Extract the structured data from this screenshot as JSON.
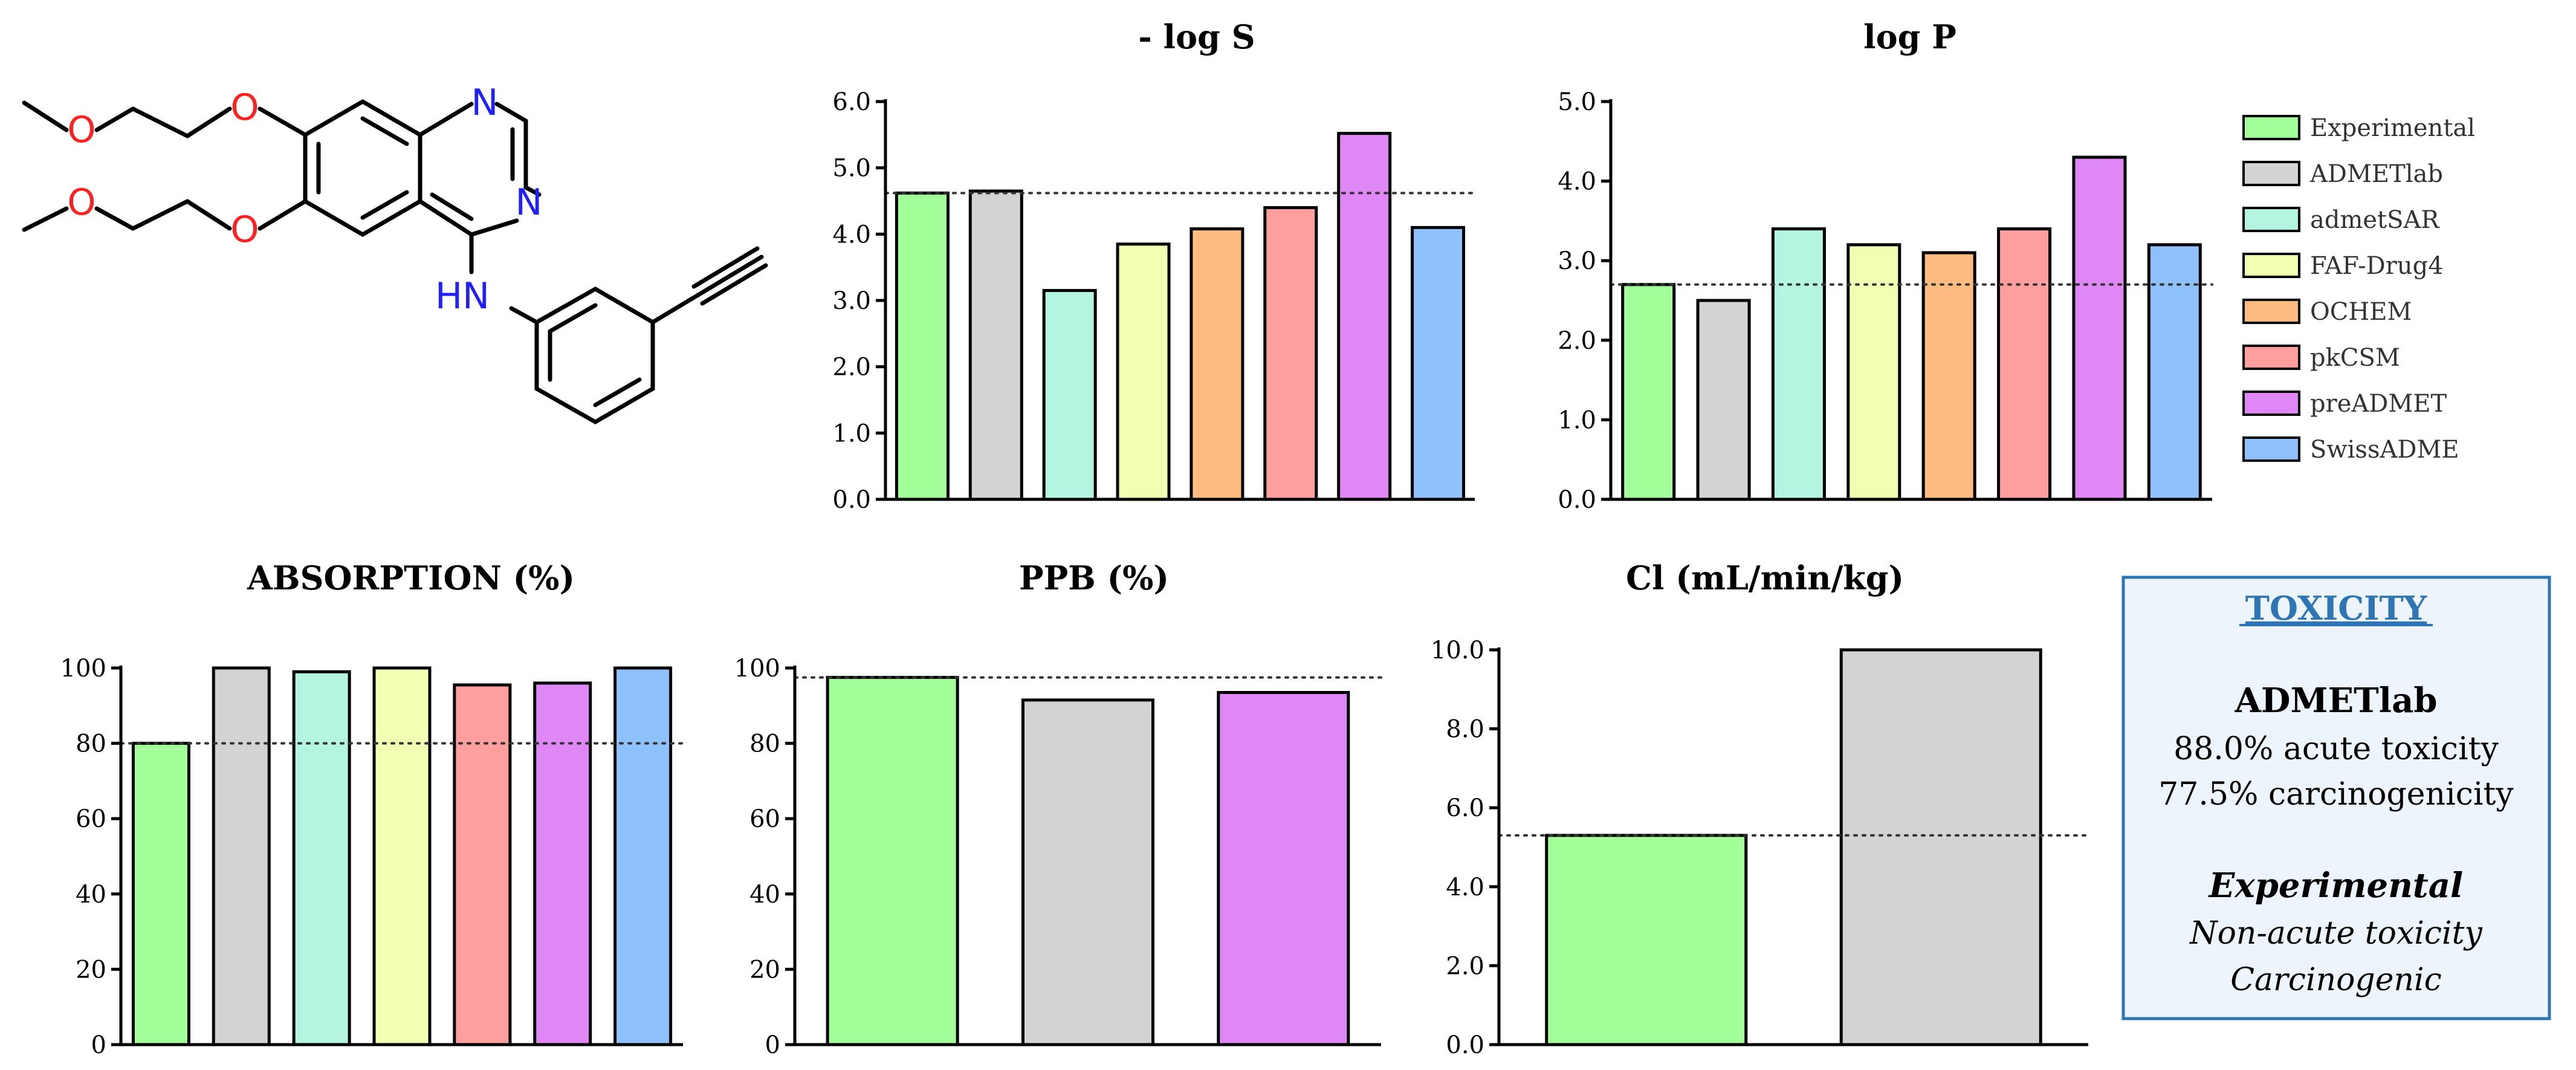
{
  "legend": {
    "items": [
      {
        "label": "Experimental",
        "color": "#a3ff99"
      },
      {
        "label": "ADMETlab",
        "color": "#d3d3d3"
      },
      {
        "label": "admetSAR",
        "color": "#b3f5e0"
      },
      {
        "label": "FAF-Drug4",
        "color": "#f2ffb3"
      },
      {
        "label": "OCHEM",
        "color": "#ffbb80"
      },
      {
        "label": "pkCSM",
        "color": "#ff9e9e"
      },
      {
        "label": "preADMET",
        "color": "#df88f5"
      },
      {
        "label": "SwissADME",
        "color": "#8fc1ff"
      }
    ]
  },
  "molecule": {
    "atoms": {
      "o": "O",
      "n": "N",
      "hn": "HN"
    }
  },
  "chart_data": [
    {
      "type": "bar",
      "title": "- log S",
      "categories": [
        "Experimental",
        "ADMETlab",
        "admetSAR",
        "FAF-Drug4",
        "OCHEM",
        "pkCSM",
        "preADMET",
        "SwissADME"
      ],
      "values": [
        4.62,
        4.65,
        3.15,
        3.85,
        4.08,
        4.4,
        5.52,
        4.1
      ],
      "reference_line": 4.62,
      "ylim": [
        0,
        6
      ],
      "yticks": [
        0,
        1,
        2,
        3,
        4,
        5,
        6
      ],
      "ytick_labels": [
        "0.0",
        "1.0",
        "2.0",
        "3.0",
        "4.0",
        "5.0",
        "6.0"
      ],
      "xlabel": "",
      "ylabel": ""
    },
    {
      "type": "bar",
      "title": "log P",
      "categories": [
        "Experimental",
        "ADMETlab",
        "admetSAR",
        "FAF-Drug4",
        "OCHEM",
        "pkCSM",
        "preADMET",
        "SwissADME"
      ],
      "values": [
        2.7,
        2.5,
        3.4,
        3.2,
        3.1,
        3.4,
        4.3,
        3.2
      ],
      "reference_line": 2.7,
      "ylim": [
        0,
        5
      ],
      "yticks": [
        0,
        1,
        2,
        3,
        4,
        5
      ],
      "ytick_labels": [
        "0.0",
        "1.0",
        "2.0",
        "3.0",
        "4.0",
        "5.0"
      ],
      "xlabel": "",
      "ylabel": ""
    },
    {
      "type": "bar",
      "title": "ABSORPTION (%)",
      "categories": [
        "Experimental",
        "ADMETlab",
        "admetSAR",
        "FAF-Drug4",
        "pkCSM",
        "preADMET",
        "SwissADME"
      ],
      "values": [
        80,
        100,
        99,
        100,
        95.5,
        96,
        100
      ],
      "reference_line": 80,
      "ylim": [
        0,
        100
      ],
      "yticks": [
        0,
        20,
        40,
        60,
        80,
        100
      ],
      "ytick_labels": [
        "0",
        "20",
        "40",
        "60",
        "80",
        "100"
      ],
      "xlabel": "",
      "ylabel": ""
    },
    {
      "type": "bar",
      "title": "PPB (%)",
      "categories": [
        "Experimental",
        "ADMETlab",
        "preADMET"
      ],
      "values": [
        97.5,
        91.5,
        93.5
      ],
      "reference_line": 97.5,
      "ylim": [
        0,
        100
      ],
      "yticks": [
        0,
        20,
        40,
        60,
        80,
        100
      ],
      "ytick_labels": [
        "0",
        "20",
        "40",
        "60",
        "80",
        "100"
      ],
      "xlabel": "",
      "ylabel": ""
    },
    {
      "type": "bar",
      "title": "Cl (mL/min/kg)",
      "categories": [
        "Experimental",
        "ADMETlab"
      ],
      "values": [
        5.3,
        10.0
      ],
      "reference_line": 5.3,
      "ylim": [
        0,
        10
      ],
      "yticks": [
        0,
        2,
        4,
        6,
        8,
        10
      ],
      "ytick_labels": [
        "0.0",
        "2.0",
        "4.0",
        "6.0",
        "8.0",
        "10.0"
      ],
      "xlabel": "",
      "ylabel": ""
    }
  ],
  "toxicity": {
    "title": "TOXICITY",
    "admetlab": {
      "heading": "ADMETlab",
      "line1": "88.0% acute toxicity",
      "line2": "77.5% carcinogenicity"
    },
    "experimental": {
      "heading": "Experimental",
      "line1": "Non-acute toxicity",
      "line2": "Carcinogenic"
    }
  }
}
